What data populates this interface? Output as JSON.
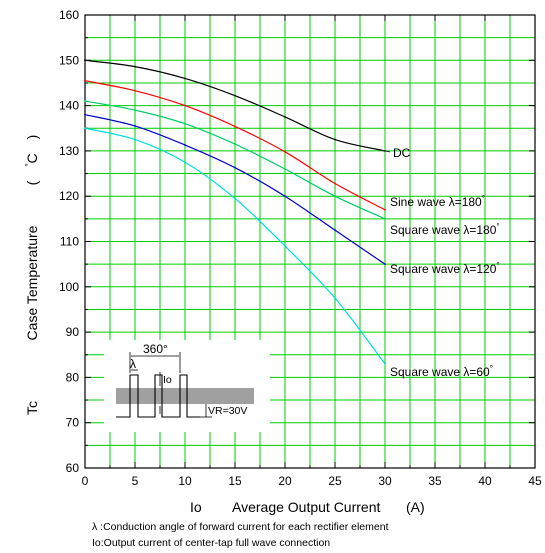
{
  "chart_data": {
    "type": "line",
    "xlabel_symbol": "Io",
    "xlabel": "Average Output Current",
    "xunit": "(A)",
    "ylabel_symbol": "Tc",
    "ylabel": "Case Temperature",
    "yunit_left": "(",
    "yunit_deg": "°",
    "yunit_c": "C",
    "yunit_right": ")",
    "xlim": [
      0,
      45
    ],
    "ylim": [
      60,
      160
    ],
    "x_ticks": [
      "0",
      "5",
      "10",
      "15",
      "20",
      "25",
      "30",
      "35",
      "40",
      "45"
    ],
    "y_ticks": [
      "60",
      "70",
      "80",
      "90",
      "100",
      "110",
      "120",
      "130",
      "140",
      "150",
      "160"
    ],
    "grid": true,
    "grid_color": "#00cc00",
    "series": [
      {
        "name": "DC",
        "color": "#000000",
        "x": [
          0,
          5,
          10,
          15,
          20,
          25,
          30
        ],
        "y": [
          150,
          148.6,
          146,
          142.2,
          137.5,
          132.5,
          130
        ]
      },
      {
        "name": "Sine wave λ=180°",
        "name_prefix": "Sine wave  λ=180",
        "color": "#ff0000",
        "x": [
          0,
          5,
          10,
          15,
          20,
          25,
          30
        ],
        "y": [
          145.5,
          143.3,
          140,
          135.4,
          129.8,
          122.8,
          117
        ]
      },
      {
        "name": "Square wave λ=180°",
        "name_prefix": "Square wave  λ=180",
        "color": "#00cc66",
        "x": [
          0,
          5,
          10,
          15,
          20,
          25,
          30
        ],
        "y": [
          141,
          139,
          136,
          131.5,
          126,
          120,
          115
        ]
      },
      {
        "name": "Square wave λ=120°",
        "name_prefix": "Square wave  λ=120",
        "color": "#0000cc",
        "x": [
          0,
          5,
          10,
          15,
          20,
          25,
          30
        ],
        "y": [
          138,
          135.5,
          131.3,
          126.3,
          120,
          112.5,
          105
        ]
      },
      {
        "name": "Square wave λ=60°",
        "name_prefix": "Square wave  λ=60",
        "color": "#00dddd",
        "x": [
          0,
          5,
          10,
          15,
          20,
          25,
          30
        ],
        "y": [
          135,
          132.5,
          127.5,
          119.5,
          109,
          97.5,
          83
        ]
      }
    ],
    "inset": {
      "period_label": "360°",
      "lambda_label": "λ",
      "current_label": "Io",
      "voltage_label": "VR=30V"
    },
    "footnotes": [
      "λ :Conduction angle of forward current for each rectifier element",
      "Io:Output current of center-tap full wave connection"
    ]
  }
}
